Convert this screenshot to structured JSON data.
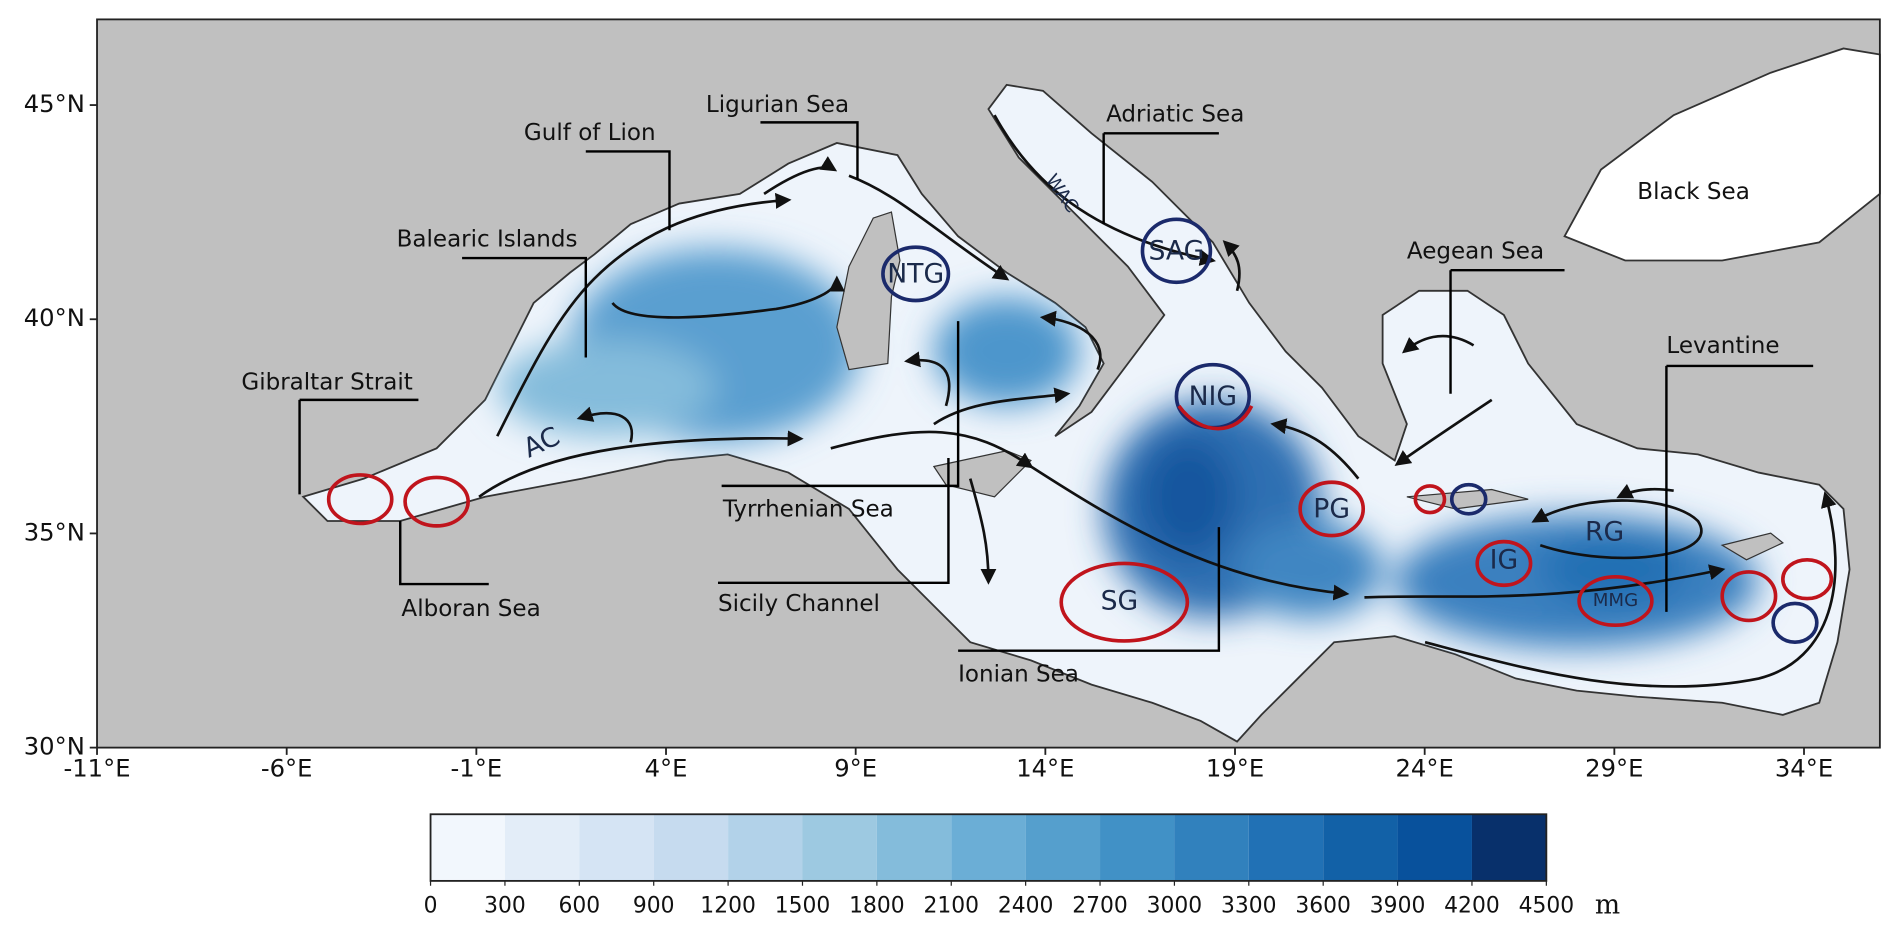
{
  "map": {
    "xlim": [
      -11,
      36
    ],
    "ylim": [
      30,
      47
    ],
    "xticks": [
      {
        "value": -11,
        "label": "-11°E"
      },
      {
        "value": -6,
        "label": "-6°E"
      },
      {
        "value": -1,
        "label": "-1°E"
      },
      {
        "value": 4,
        "label": "4°E"
      },
      {
        "value": 9,
        "label": "9°E"
      },
      {
        "value": 14,
        "label": "14°E"
      },
      {
        "value": 19,
        "label": "19°E"
      },
      {
        "value": 24,
        "label": "24°E"
      },
      {
        "value": 29,
        "label": "29°E"
      },
      {
        "value": 34,
        "label": "34°E"
      }
    ],
    "yticks": [
      {
        "value": 30,
        "label": "30°N"
      },
      {
        "value": 35,
        "label": "35°N"
      },
      {
        "value": 40,
        "label": "40°N"
      },
      {
        "value": 45,
        "label": "45°N"
      }
    ],
    "regions": [
      "Ligurian Sea",
      "Gulf of Lion",
      "Adriatic Sea",
      "Balearic Islands",
      "Black Sea",
      "Aegean Sea",
      "Levantine",
      "Gibraltar Strait",
      "Tyrrhenian Sea",
      "Alboran Sea",
      "Sicily Channel",
      "Ionian Sea"
    ],
    "features": [
      "NTG",
      "SAG",
      "NIG",
      "PG",
      "SG",
      "IG",
      "RG",
      "MMG",
      "AC",
      "WAC"
    ],
    "colorbar": {
      "ticks": [
        0,
        300,
        600,
        900,
        1200,
        1500,
        1800,
        2100,
        2400,
        2700,
        3000,
        3300,
        3600,
        3900,
        4200,
        4500
      ],
      "colors": [
        "#f2f7fd",
        "#e3edf8",
        "#d5e4f4",
        "#c6dbef",
        "#b2d2e9",
        "#9dc9e1",
        "#84bcdb",
        "#6baed6",
        "#559fcd",
        "#4191c6",
        "#3181bd",
        "#2171b5",
        "#1261a7",
        "#08519c",
        "#08306b"
      ],
      "unit": "m"
    }
  }
}
